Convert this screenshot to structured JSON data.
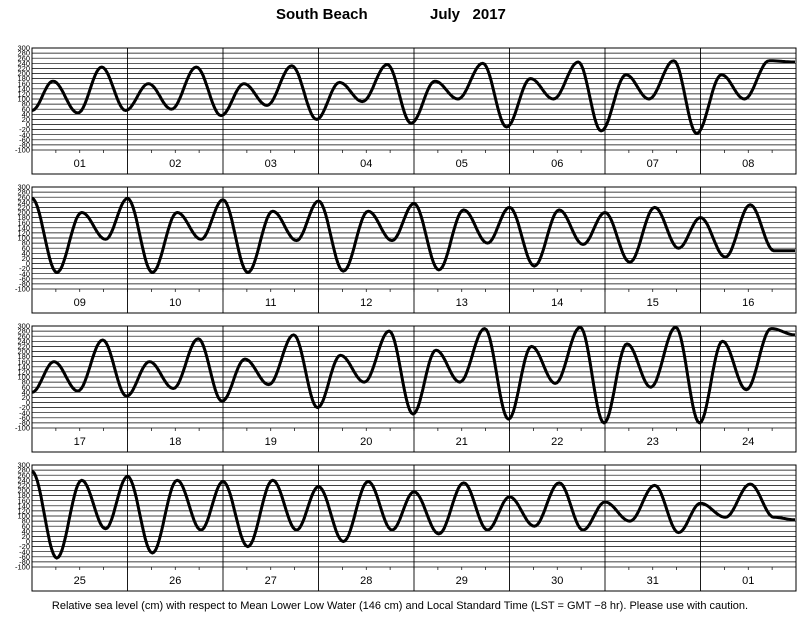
{
  "header": {
    "station": "South Beach",
    "month_year": "July   2017"
  },
  "footer": {
    "note": "Relative sea level (cm) with respect to Mean Lower Low Water (146 cm) and Local Standard Time (LST = GMT −8 hr). Please use with caution."
  },
  "chart_data": {
    "type": "line",
    "title": "South Beach          July   2017",
    "ylabel": "Relative sea level (cm)",
    "ylim": [
      -100,
      300
    ],
    "yticks": [
      300,
      280,
      260,
      240,
      220,
      200,
      180,
      160,
      140,
      120,
      100,
      80,
      60,
      40,
      20,
      0,
      -20,
      -40,
      -60,
      -80,
      -100
    ],
    "grid": true,
    "line_color": "#000000",
    "panels": [
      {
        "days": [
          "01",
          "02",
          "03",
          "04",
          "05",
          "06",
          "07",
          "08"
        ],
        "points": [
          [
            0.0,
            55
          ],
          [
            0.22,
            170
          ],
          [
            0.48,
            45
          ],
          [
            0.73,
            225
          ],
          [
            0.98,
            55
          ],
          [
            1.22,
            160
          ],
          [
            1.46,
            60
          ],
          [
            1.72,
            225
          ],
          [
            1.98,
            35
          ],
          [
            2.22,
            160
          ],
          [
            2.46,
            75
          ],
          [
            2.72,
            230
          ],
          [
            2.98,
            20
          ],
          [
            3.22,
            165
          ],
          [
            3.46,
            90
          ],
          [
            3.72,
            235
          ],
          [
            3.97,
            5
          ],
          [
            4.22,
            170
          ],
          [
            4.46,
            100
          ],
          [
            4.72,
            240
          ],
          [
            4.97,
            -10
          ],
          [
            5.22,
            180
          ],
          [
            5.46,
            100
          ],
          [
            5.72,
            245
          ],
          [
            5.96,
            -25
          ],
          [
            6.22,
            195
          ],
          [
            6.46,
            100
          ],
          [
            6.72,
            250
          ],
          [
            6.96,
            -35
          ],
          [
            7.22,
            195
          ],
          [
            7.46,
            100
          ],
          [
            7.72,
            250
          ],
          [
            7.99,
            245
          ]
        ]
      },
      {
        "days": [
          "09",
          "10",
          "11",
          "12",
          "13",
          "14",
          "15",
          "16"
        ],
        "points": [
          [
            0.0,
            255
          ],
          [
            0.26,
            -35
          ],
          [
            0.52,
            200
          ],
          [
            0.77,
            95
          ],
          [
            1.0,
            255
          ],
          [
            1.26,
            -35
          ],
          [
            1.52,
            200
          ],
          [
            1.77,
            95
          ],
          [
            2.0,
            250
          ],
          [
            2.26,
            -35
          ],
          [
            2.52,
            205
          ],
          [
            2.77,
            90
          ],
          [
            3.0,
            245
          ],
          [
            3.26,
            -30
          ],
          [
            3.52,
            205
          ],
          [
            3.77,
            90
          ],
          [
            4.0,
            235
          ],
          [
            4.26,
            -25
          ],
          [
            4.52,
            210
          ],
          [
            4.77,
            80
          ],
          [
            5.0,
            220
          ],
          [
            5.26,
            -10
          ],
          [
            5.52,
            210
          ],
          [
            5.77,
            75
          ],
          [
            6.0,
            200
          ],
          [
            6.26,
            5
          ],
          [
            6.52,
            220
          ],
          [
            6.77,
            60
          ],
          [
            7.0,
            180
          ],
          [
            7.26,
            25
          ],
          [
            7.52,
            230
          ],
          [
            7.77,
            50
          ],
          [
            7.99,
            50
          ]
        ]
      },
      {
        "days": [
          "17",
          "18",
          "19",
          "20",
          "21",
          "22",
          "23",
          "24"
        ],
        "points": [
          [
            0.0,
            40
          ],
          [
            0.23,
            160
          ],
          [
            0.48,
            45
          ],
          [
            0.74,
            245
          ],
          [
            0.99,
            25
          ],
          [
            1.23,
            160
          ],
          [
            1.48,
            55
          ],
          [
            1.74,
            250
          ],
          [
            1.99,
            5
          ],
          [
            2.23,
            170
          ],
          [
            2.48,
            70
          ],
          [
            2.74,
            265
          ],
          [
            2.99,
            -20
          ],
          [
            3.23,
            185
          ],
          [
            3.48,
            80
          ],
          [
            3.74,
            280
          ],
          [
            3.99,
            -45
          ],
          [
            4.23,
            205
          ],
          [
            4.48,
            80
          ],
          [
            4.74,
            290
          ],
          [
            4.99,
            -65
          ],
          [
            5.23,
            220
          ],
          [
            5.48,
            75
          ],
          [
            5.74,
            295
          ],
          [
            5.99,
            -80
          ],
          [
            6.23,
            230
          ],
          [
            6.48,
            60
          ],
          [
            6.74,
            295
          ],
          [
            6.99,
            -80
          ],
          [
            7.23,
            240
          ],
          [
            7.48,
            50
          ],
          [
            7.74,
            290
          ],
          [
            7.99,
            265
          ]
        ]
      },
      {
        "days": [
          "25",
          "26",
          "27",
          "28",
          "29",
          "30",
          "31",
          "01"
        ],
        "points": [
          [
            0.0,
            275
          ],
          [
            0.26,
            -65
          ],
          [
            0.52,
            240
          ],
          [
            0.77,
            50
          ],
          [
            1.0,
            255
          ],
          [
            1.26,
            -45
          ],
          [
            1.52,
            240
          ],
          [
            1.77,
            45
          ],
          [
            2.0,
            235
          ],
          [
            2.26,
            -20
          ],
          [
            2.52,
            240
          ],
          [
            2.77,
            45
          ],
          [
            3.0,
            215
          ],
          [
            3.26,
            0
          ],
          [
            3.52,
            235
          ],
          [
            3.77,
            45
          ],
          [
            4.0,
            195
          ],
          [
            4.26,
            30
          ],
          [
            4.52,
            230
          ],
          [
            4.77,
            45
          ],
          [
            5.0,
            175
          ],
          [
            5.26,
            60
          ],
          [
            5.52,
            230
          ],
          [
            5.77,
            45
          ],
          [
            6.0,
            155
          ],
          [
            6.26,
            80
          ],
          [
            6.52,
            220
          ],
          [
            6.77,
            35
          ],
          [
            7.0,
            150
          ],
          [
            7.26,
            95
          ],
          [
            7.52,
            225
          ],
          [
            7.77,
            95
          ],
          [
            7.99,
            85
          ]
        ]
      }
    ]
  }
}
